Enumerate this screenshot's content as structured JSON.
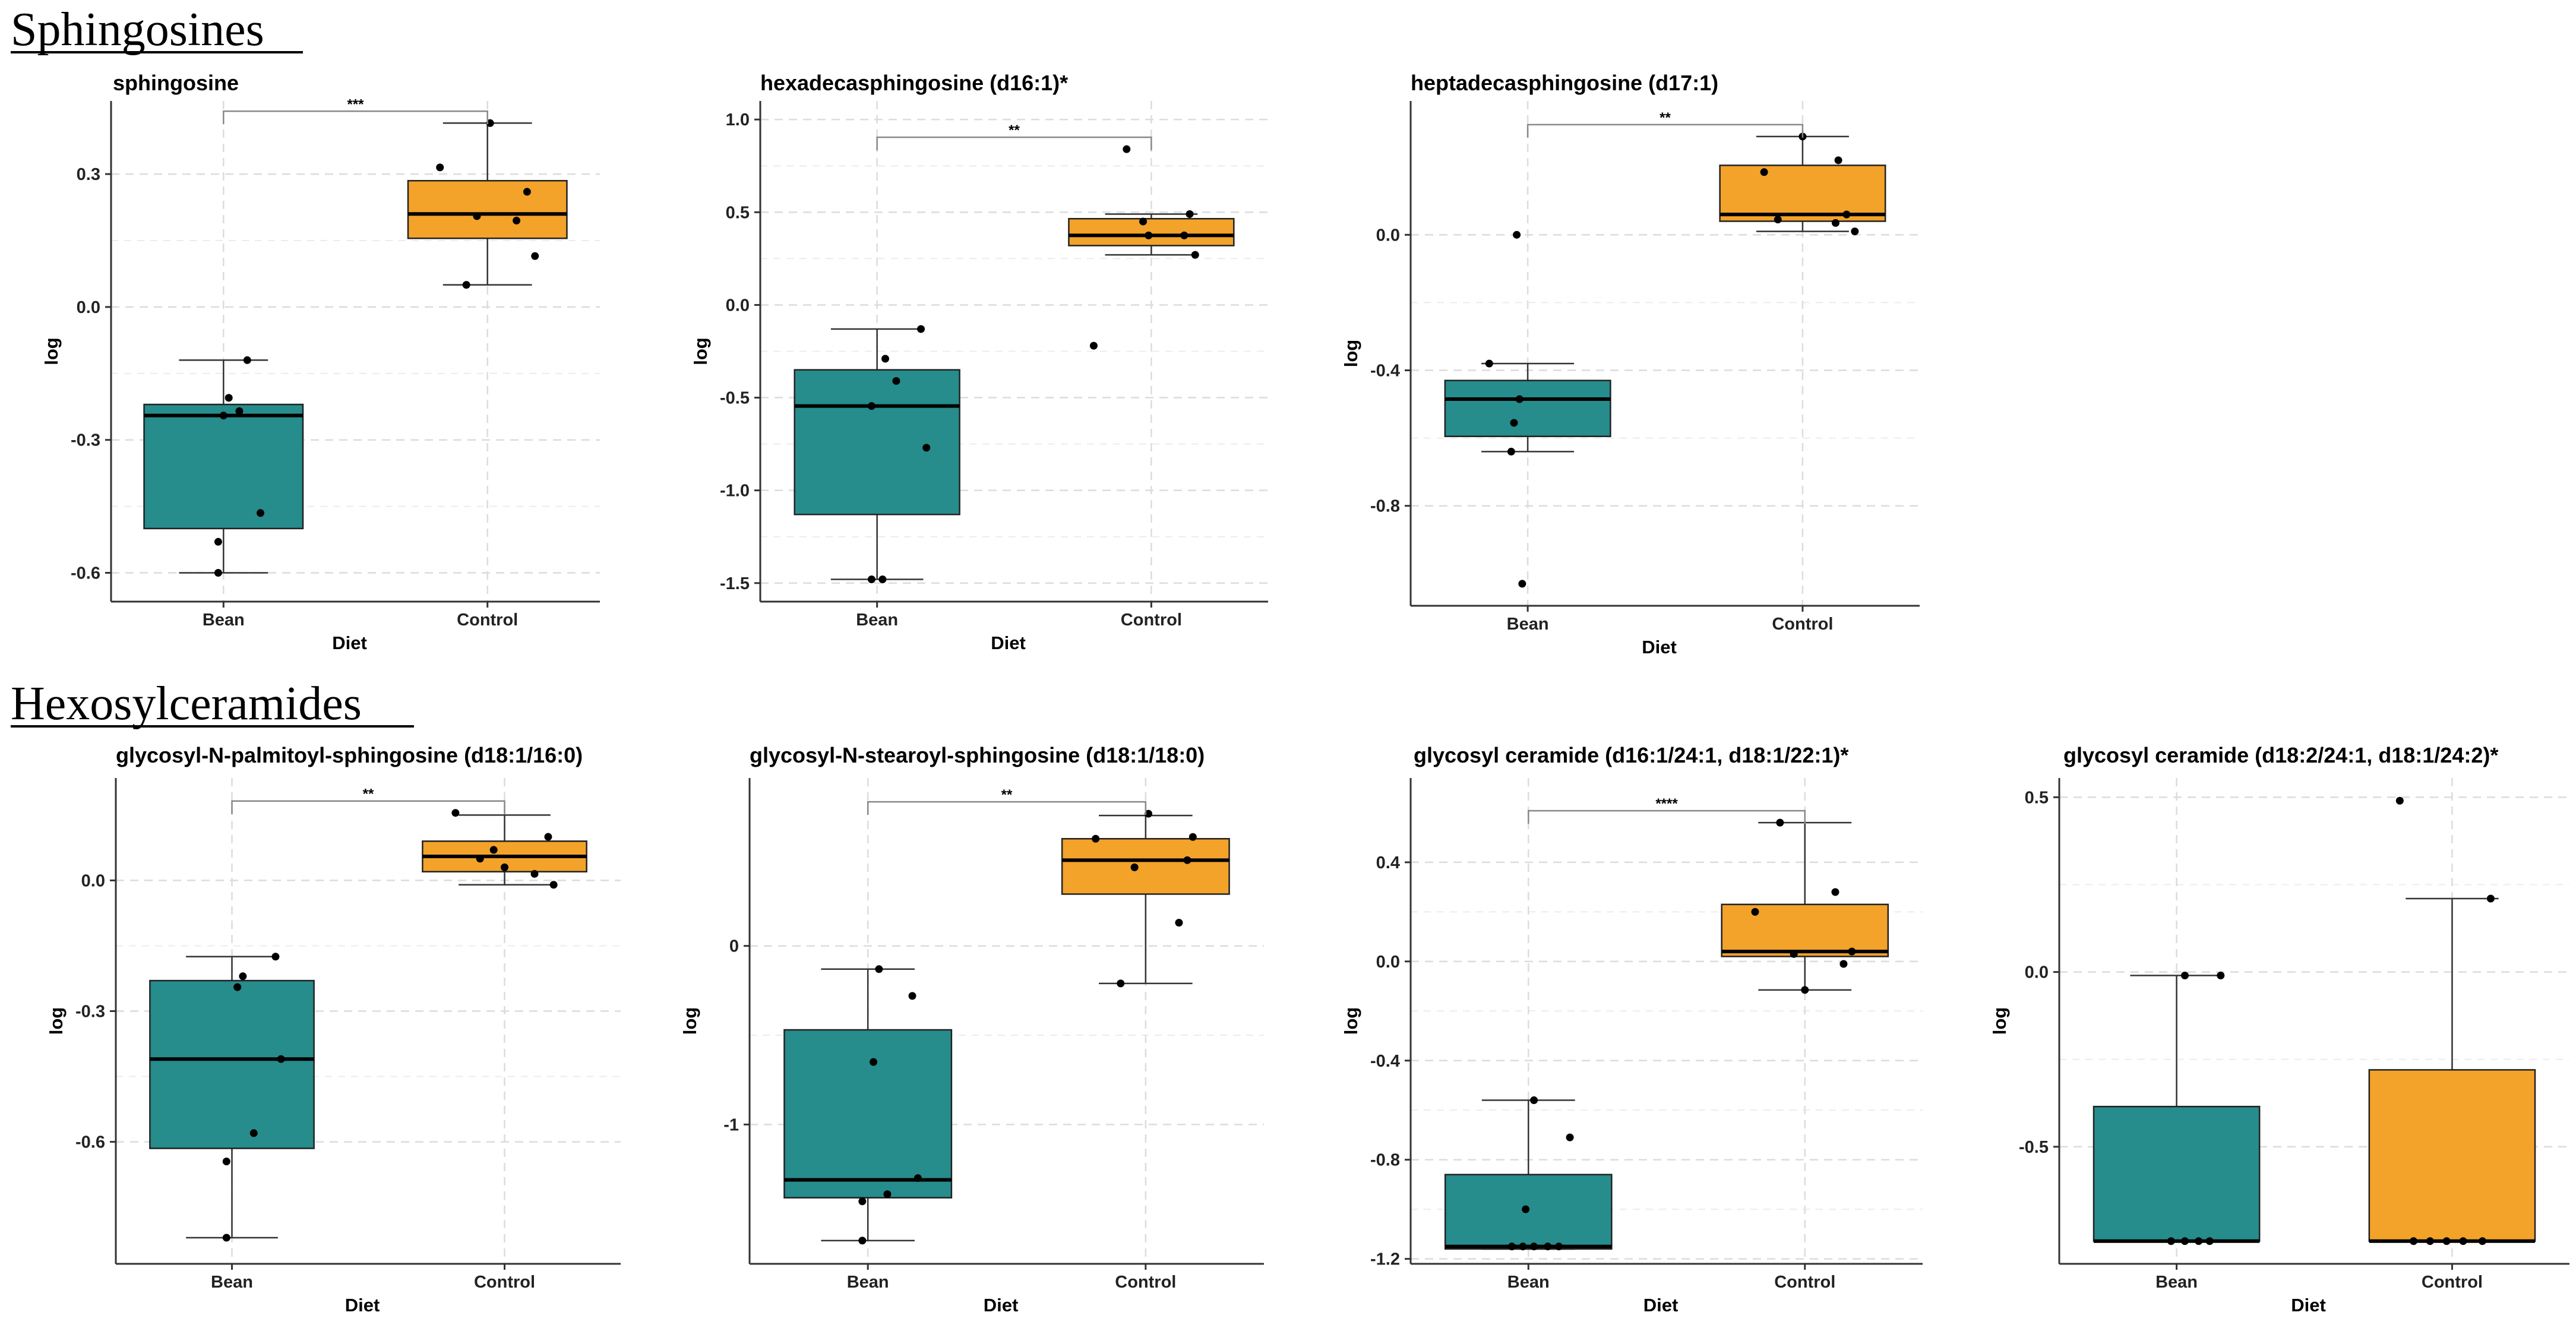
{
  "sections": [
    {
      "title": "Sphingosines"
    },
    {
      "title": "Hexosylceramides"
    }
  ],
  "colors": {
    "bean": "#268c8c",
    "control": "#f3a22a",
    "point": "#000000",
    "grid": "#dcdcdc"
  },
  "chart_data": [
    {
      "type": "box",
      "section": 0,
      "title": "sphingosine",
      "xlabel": "Diet",
      "ylabel": "log",
      "categories": [
        "Bean",
        "Control"
      ],
      "yticks": [
        {
          "v": 0.3,
          "label": "0.3"
        },
        {
          "v": 0.0,
          "label": "0.0"
        },
        {
          "v": -0.3,
          "label": "-0.3"
        },
        {
          "v": -0.6,
          "label": "-0.6"
        }
      ],
      "ylim": [
        -0.665,
        0.465
      ],
      "significance": "***",
      "boxes": [
        {
          "q1": -0.5,
          "median": -0.245,
          "q3": -0.22,
          "whisker_low": -0.6,
          "whisker_high": -0.12
        },
        {
          "q1": 0.155,
          "median": 0.21,
          "q3": 0.285,
          "whisker_low": 0.05,
          "whisker_high": 0.415
        }
      ],
      "points": [
        [
          [
            0.09,
            -0.12
          ],
          [
            0.02,
            -0.205
          ],
          [
            0.06,
            -0.235
          ],
          [
            0.0,
            -0.245
          ],
          [
            0.14,
            -0.465
          ],
          [
            -0.02,
            -0.53
          ],
          [
            -0.02,
            -0.6
          ]
        ],
        [
          [
            0.01,
            0.415
          ],
          [
            -0.18,
            0.315
          ],
          [
            0.15,
            0.26
          ],
          [
            -0.04,
            0.205
          ],
          [
            0.11,
            0.195
          ],
          [
            0.18,
            0.115
          ],
          [
            -0.08,
            0.05
          ]
        ]
      ]
    },
    {
      "type": "box",
      "section": 0,
      "title": "hexadecasphingosine (d16:1)*",
      "xlabel": "Diet",
      "ylabel": "log",
      "categories": [
        "Bean",
        "Control"
      ],
      "yticks": [
        {
          "v": 1.0,
          "label": "1.0"
        },
        {
          "v": 0.5,
          "label": "0.5"
        },
        {
          "v": 0.0,
          "label": "0.0"
        },
        {
          "v": -0.5,
          "label": "-0.5"
        },
        {
          "v": -1.0,
          "label": "-1.0"
        },
        {
          "v": -1.5,
          "label": "-1.5"
        }
      ],
      "ylim": [
        -1.6,
        1.1
      ],
      "significance": "**",
      "boxes": [
        {
          "q1": -1.13,
          "median": -0.545,
          "q3": -0.35,
          "whisker_low": -1.48,
          "whisker_high": -0.13
        },
        {
          "q1": 0.32,
          "median": 0.375,
          "q3": 0.465,
          "whisker_low": 0.27,
          "whisker_high": 0.49
        }
      ],
      "points": [
        [
          [
            0.16,
            -0.13
          ],
          [
            0.03,
            -0.29
          ],
          [
            0.07,
            -0.41
          ],
          [
            -0.02,
            -0.545
          ],
          [
            0.18,
            -0.77
          ],
          [
            -0.02,
            -1.48
          ],
          [
            0.02,
            -1.48
          ]
        ],
        [
          [
            -0.09,
            0.84
          ],
          [
            0.14,
            0.49
          ],
          [
            -0.03,
            0.45
          ],
          [
            -0.01,
            0.375
          ],
          [
            0.12,
            0.375
          ],
          [
            0.16,
            0.27
          ],
          [
            -0.21,
            -0.22
          ]
        ]
      ]
    },
    {
      "type": "box",
      "section": 0,
      "title": "heptadecasphingosine (d17:1)",
      "xlabel": "Diet",
      "ylabel": "log",
      "categories": [
        "Bean",
        "Control"
      ],
      "yticks": [
        {
          "v": 0.0,
          "label": "0.0"
        },
        {
          "v": -0.4,
          "label": "-0.4"
        },
        {
          "v": -0.8,
          "label": "-0.8"
        }
      ],
      "ylim": [
        -1.095,
        0.395
      ],
      "significance": "**",
      "boxes": [
        {
          "q1": -0.595,
          "median": -0.485,
          "q3": -0.43,
          "whisker_low": -0.64,
          "whisker_high": -0.38
        },
        {
          "q1": 0.04,
          "median": 0.06,
          "q3": 0.205,
          "whisker_low": 0.01,
          "whisker_high": 0.29
        }
      ],
      "points": [
        [
          [
            -0.04,
            0.0
          ],
          [
            -0.14,
            -0.38
          ],
          [
            -0.03,
            -0.485
          ],
          [
            -0.05,
            -0.555
          ],
          [
            -0.06,
            -0.64
          ],
          [
            -0.02,
            -1.03
          ]
        ],
        [
          [
            0.0,
            0.29
          ],
          [
            0.13,
            0.22
          ],
          [
            -0.14,
            0.185
          ],
          [
            0.16,
            0.06
          ],
          [
            -0.09,
            0.045
          ],
          [
            0.12,
            0.035
          ],
          [
            0.19,
            0.01
          ]
        ]
      ]
    },
    {
      "type": "box",
      "section": 1,
      "title": "glycosyl-N-palmitoyl-sphingosine (d18:1/16:0)",
      "xlabel": "Diet",
      "ylabel": "log",
      "categories": [
        "Bean",
        "Control"
      ],
      "yticks": [
        {
          "v": 0.0,
          "label": "0.0"
        },
        {
          "v": -0.3,
          "label": "-0.3"
        },
        {
          "v": -0.6,
          "label": "-0.6"
        }
      ],
      "ylim": [
        -0.88,
        0.235
      ],
      "significance": "**",
      "boxes": [
        {
          "q1": -0.615,
          "median": -0.41,
          "q3": -0.23,
          "whisker_low": -0.82,
          "whisker_high": -0.175
        },
        {
          "q1": 0.02,
          "median": 0.055,
          "q3": 0.09,
          "whisker_low": -0.01,
          "whisker_high": 0.15
        }
      ],
      "points": [
        [
          [
            0.16,
            -0.175
          ],
          [
            0.04,
            -0.22
          ],
          [
            0.02,
            -0.245
          ],
          [
            0.18,
            -0.41
          ],
          [
            0.08,
            -0.58
          ],
          [
            -0.02,
            -0.645
          ],
          [
            -0.02,
            -0.82
          ]
        ],
        [
          [
            -0.18,
            0.155
          ],
          [
            0.16,
            0.1
          ],
          [
            -0.04,
            0.07
          ],
          [
            -0.09,
            0.05
          ],
          [
            0.0,
            0.03
          ],
          [
            0.11,
            0.015
          ],
          [
            0.18,
            -0.01
          ]
        ]
      ]
    },
    {
      "type": "box",
      "section": 1,
      "title": "glycosyl-N-stearoyl-sphingosine (d18:1/18:0)",
      "xlabel": "Diet",
      "ylabel": "log",
      "categories": [
        "Bean",
        "Control"
      ],
      "yticks": [
        {
          "v": 0.0,
          "label": "0"
        },
        {
          "v": -1.0,
          "label": "-1"
        }
      ],
      "ylim": [
        -1.78,
        0.94
      ],
      "significance": "**",
      "boxes": [
        {
          "q1": -1.41,
          "median": -1.31,
          "q3": -0.47,
          "whisker_low": -1.65,
          "whisker_high": -0.13
        },
        {
          "q1": 0.29,
          "median": 0.48,
          "q3": 0.6,
          "whisker_low": -0.21,
          "whisker_high": 0.73
        }
      ],
      "points": [
        [
          [
            0.04,
            -0.13
          ],
          [
            0.16,
            -0.28
          ],
          [
            0.02,
            -0.65
          ],
          [
            0.18,
            -1.3
          ],
          [
            0.07,
            -1.39
          ],
          [
            -0.02,
            -1.43
          ],
          [
            -0.02,
            -1.65
          ]
        ],
        [
          [
            0.01,
            0.74
          ],
          [
            -0.18,
            0.6
          ],
          [
            0.17,
            0.61
          ],
          [
            -0.04,
            0.44
          ],
          [
            0.15,
            0.48
          ],
          [
            0.12,
            0.13
          ],
          [
            -0.09,
            -0.21
          ]
        ]
      ]
    },
    {
      "type": "box",
      "section": 1,
      "title": "glycosyl ceramide (d16:1/24:1, d18:1/22:1)*",
      "xlabel": "Diet",
      "ylabel": "log",
      "categories": [
        "Bean",
        "Control"
      ],
      "yticks": [
        {
          "v": 0.4,
          "label": "0.4"
        },
        {
          "v": 0.0,
          "label": "0.0"
        },
        {
          "v": -0.4,
          "label": "-0.4"
        },
        {
          "v": -0.8,
          "label": "-0.8"
        },
        {
          "v": -1.2,
          "label": "-1.2"
        }
      ],
      "ylim": [
        -1.22,
        0.74
      ],
      "significance": "****",
      "boxes": [
        {
          "q1": -1.16,
          "median": -1.15,
          "q3": -0.86,
          "whisker_low": -1.16,
          "whisker_high": -0.56
        },
        {
          "q1": 0.02,
          "median": 0.04,
          "q3": 0.23,
          "whisker_low": -0.115,
          "whisker_high": 0.56
        }
      ],
      "points": [
        [
          [
            0.02,
            -0.56
          ],
          [
            0.15,
            -0.71
          ],
          [
            -0.01,
            -1.0
          ],
          [
            -0.02,
            -1.15
          ],
          [
            0.02,
            -1.15
          ],
          [
            0.07,
            -1.15
          ],
          [
            0.11,
            -1.15
          ],
          [
            -0.06,
            -1.15
          ]
        ],
        [
          [
            -0.09,
            0.56
          ],
          [
            0.11,
            0.28
          ],
          [
            -0.18,
            0.2
          ],
          [
            0.17,
            0.04
          ],
          [
            -0.04,
            0.03
          ],
          [
            0.14,
            -0.01
          ],
          [
            0.0,
            -0.115
          ]
        ]
      ]
    },
    {
      "type": "box",
      "section": 1,
      "title": "glycosyl ceramide (d18:2/24:1, d18:1/24:2)*",
      "xlabel": "Diet",
      "ylabel": "log",
      "categories": [
        "Bean",
        "Control"
      ],
      "yticks": [
        {
          "v": 0.5,
          "label": "0.5"
        },
        {
          "v": 0.0,
          "label": "0.0"
        },
        {
          "v": -0.5,
          "label": "-0.5"
        }
      ],
      "ylim": [
        -0.835,
        0.555
      ],
      "significance": "",
      "boxes": [
        {
          "q1": -0.77,
          "median": -0.77,
          "q3": -0.385,
          "whisker_low": -0.77,
          "whisker_high": -0.01
        },
        {
          "q1": -0.77,
          "median": -0.77,
          "q3": -0.28,
          "whisker_low": -0.77,
          "whisker_high": 0.21
        }
      ],
      "points": [
        [
          [
            0.03,
            -0.01
          ],
          [
            0.16,
            -0.01
          ],
          [
            -0.02,
            -0.77
          ],
          [
            0.03,
            -0.77
          ],
          [
            0.08,
            -0.77
          ],
          [
            0.12,
            -0.77
          ]
        ],
        [
          [
            -0.19,
            0.49
          ],
          [
            0.14,
            0.21
          ],
          [
            -0.14,
            -0.77
          ],
          [
            -0.08,
            -0.77
          ],
          [
            -0.02,
            -0.77
          ],
          [
            0.04,
            -0.77
          ],
          [
            0.11,
            -0.77
          ]
        ]
      ]
    }
  ]
}
